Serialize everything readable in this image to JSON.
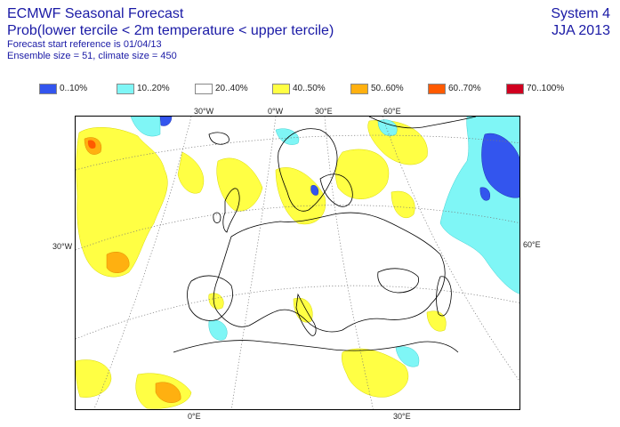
{
  "header": {
    "title": "ECMWF Seasonal Forecast",
    "subtitle": "Prob(lower tercile < 2m temperature < upper tercile)",
    "forecast_ref": "Forecast start reference is 01/04/13",
    "ensemble": "Ensemble size = 51, climate size = 450",
    "system": "System 4",
    "season": "JJA 2013"
  },
  "legend": [
    {
      "label": "0..10%",
      "color": "#3355ee"
    },
    {
      "label": "10..20%",
      "color": "#7ff6f6"
    },
    {
      "label": "20..40%",
      "color": "#ffffff"
    },
    {
      "label": "40..50%",
      "color": "#ffff44"
    },
    {
      "label": "50..60%",
      "color": "#ffb010"
    },
    {
      "label": "60..70%",
      "color": "#ff5a00"
    },
    {
      "label": "70..100%",
      "color": "#d00020"
    }
  ],
  "grid_labels": {
    "top": [
      "30°W",
      "0°W",
      "30°E",
      "60°E"
    ],
    "bottom": [
      "0°E",
      "30°E"
    ],
    "left": "30°W",
    "right": "60°E"
  }
}
